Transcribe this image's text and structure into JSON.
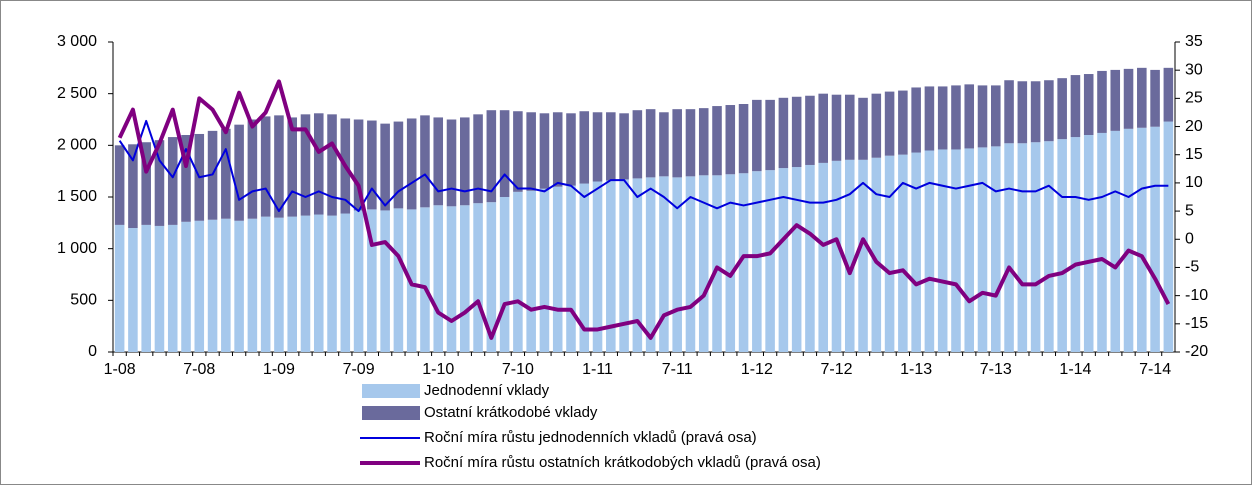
{
  "chart_data": {
    "type": "bar",
    "stacked": true,
    "categories": [
      "1-08",
      null,
      null,
      null,
      null,
      null,
      "7-08",
      null,
      null,
      null,
      null,
      null,
      "1-09",
      null,
      null,
      null,
      null,
      null,
      "7-09",
      null,
      null,
      null,
      null,
      null,
      "1-10",
      null,
      null,
      null,
      null,
      null,
      "7-10",
      null,
      null,
      null,
      null,
      null,
      "1-11",
      null,
      null,
      null,
      null,
      null,
      "7-11",
      null,
      null,
      null,
      null,
      null,
      "1-12",
      null,
      null,
      null,
      null,
      null,
      "7-12",
      null,
      null,
      null,
      null,
      null,
      "1-13",
      null,
      null,
      null,
      null,
      null,
      "7-13",
      null,
      null,
      null,
      null,
      null,
      "1-14",
      null,
      null,
      null,
      null,
      null,
      "7-14",
      null
    ],
    "series": [
      {
        "name": "Jednodenní vklady",
        "type": "bar",
        "color": "#a6c8ec",
        "values": [
          1230,
          1200,
          1230,
          1220,
          1230,
          1260,
          1270,
          1280,
          1290,
          1270,
          1290,
          1310,
          1300,
          1310,
          1320,
          1330,
          1320,
          1340,
          1370,
          1380,
          1370,
          1390,
          1380,
          1400,
          1420,
          1410,
          1420,
          1440,
          1450,
          1500,
          1550,
          1560,
          1580,
          1600,
          1610,
          1630,
          1650,
          1660,
          1670,
          1680,
          1690,
          1700,
          1690,
          1700,
          1710,
          1710,
          1720,
          1730,
          1750,
          1760,
          1780,
          1790,
          1810,
          1830,
          1850,
          1860,
          1860,
          1880,
          1900,
          1910,
          1930,
          1950,
          1960,
          1960,
          1970,
          1980,
          1990,
          2020,
          2020,
          2030,
          2040,
          2060,
          2080,
          2100,
          2120,
          2140,
          2160,
          2170,
          2180,
          2230
        ]
      },
      {
        "name": "Ostatní krátkodobé vklady",
        "type": "bar",
        "color": "#6a6a9c",
        "values": [
          770,
          810,
          800,
          830,
          850,
          840,
          840,
          860,
          870,
          930,
          960,
          970,
          990,
          960,
          980,
          980,
          980,
          920,
          880,
          860,
          840,
          840,
          880,
          890,
          850,
          840,
          850,
          860,
          890,
          840,
          780,
          760,
          730,
          720,
          700,
          700,
          670,
          660,
          640,
          660,
          660,
          620,
          660,
          650,
          650,
          670,
          670,
          670,
          690,
          680,
          680,
          680,
          670,
          670,
          640,
          630,
          600,
          620,
          620,
          620,
          630,
          620,
          610,
          620,
          620,
          600,
          590,
          610,
          600,
          590,
          590,
          590,
          600,
          590,
          600,
          590,
          580,
          580,
          550,
          520
        ]
      },
      {
        "name": "Roční míra růstu jednodenních vkladů (pravá osa)",
        "type": "line",
        "axis": "y2",
        "color": "#0000dd",
        "width": 2,
        "values": [
          17.5,
          14,
          21,
          14,
          11,
          16,
          11,
          11.5,
          16,
          7,
          8.5,
          9,
          5,
          8.5,
          7.5,
          8.5,
          7.5,
          7,
          5,
          9,
          6,
          8.5,
          10,
          11.5,
          8.5,
          9,
          8.5,
          9,
          8.5,
          11.5,
          9,
          9,
          8.5,
          10,
          9.5,
          7.5,
          9,
          10.5,
          10.5,
          7.5,
          9,
          7.5,
          5.5,
          7.5,
          6.5,
          5.5,
          6.5,
          6,
          6.5,
          7,
          7.5,
          7,
          6.5,
          6.5,
          7,
          8,
          10,
          8,
          7.5,
          10,
          9,
          10,
          9.5,
          9,
          9.5,
          10,
          8.5,
          9,
          8.5,
          8.5,
          9.5,
          7.5,
          7.5,
          7,
          7.5,
          8.5,
          7.5,
          9,
          9.5,
          9.5
        ]
      },
      {
        "name": "Roční míra růstu ostatních krátkodobých vkladů (pravá osa)",
        "type": "line",
        "axis": "y2",
        "color": "#800080",
        "width": 4,
        "values": [
          18,
          23,
          12,
          17,
          23,
          13,
          25,
          23,
          19,
          26,
          20,
          22.5,
          28,
          19.5,
          19.5,
          15.5,
          17,
          13,
          9.5,
          -1,
          -0.5,
          -3,
          -8,
          -8.5,
          -13,
          -14.5,
          -13,
          -11,
          -17.5,
          -11.5,
          -11,
          -12.5,
          -12,
          -12.5,
          -12.5,
          -16,
          -16,
          -15.5,
          -15,
          -14.5,
          -17.5,
          -13.5,
          -12.5,
          -12,
          -10,
          -5,
          -6.5,
          -3,
          -3,
          -2.5,
          0,
          2.5,
          1,
          -1,
          0,
          -6,
          0,
          -4,
          -6,
          -5.5,
          -8,
          -7,
          -7.5,
          -8,
          -11,
          -9.5,
          -10,
          -5,
          -8,
          -8,
          -6.5,
          -6,
          -4.5,
          -4,
          -3.5,
          -5,
          -2,
          -3,
          -7,
          -11.5
        ]
      }
    ],
    "ylim": [
      0,
      3000
    ],
    "yticks": [
      0,
      {
        "value": 500,
        "label": "500"
      },
      {
        "value": 1000,
        "label": "1 000"
      },
      {
        "value": 1500,
        "label": "1 500"
      },
      {
        "value": 2000,
        "label": "2 000"
      },
      {
        "value": 2500,
        "label": "2 500"
      },
      {
        "value": 3000,
        "label": "3 000"
      }
    ],
    "y2lim": [
      -20,
      35
    ],
    "y2ticks": [
      -20,
      -15,
      -10,
      -5,
      0,
      5,
      10,
      15,
      20,
      25,
      30,
      35
    ],
    "grid": false
  }
}
